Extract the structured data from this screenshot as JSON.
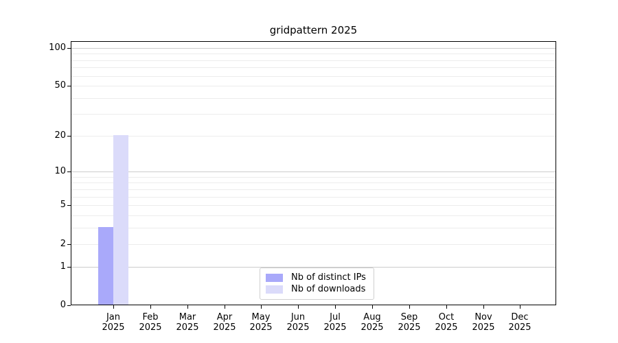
{
  "title": "gridpattern 2025",
  "chart_data": {
    "type": "bar",
    "title": "gridpattern 2025",
    "categories": [
      "Jan",
      "Feb",
      "Mar",
      "Apr",
      "May",
      "Jun",
      "Jul",
      "Aug",
      "Sep",
      "Oct",
      "Nov",
      "Dec"
    ],
    "category_year": "2025",
    "series": [
      {
        "name": "Nb of distinct IPs",
        "color": "#a9a9fa",
        "values": [
          3,
          0,
          0,
          0,
          0,
          0,
          0,
          0,
          0,
          0,
          0,
          0
        ]
      },
      {
        "name": "Nb of downloads",
        "color": "#dbdbfa",
        "values": [
          20,
          0,
          0,
          0,
          0,
          0,
          0,
          0,
          0,
          0,
          0,
          0
        ]
      }
    ],
    "yscale": "log1p",
    "ylim": [
      0,
      113
    ],
    "y_ticks": [
      100,
      50,
      20,
      10,
      5,
      2,
      1,
      0
    ],
    "grid_minor_values": [
      2,
      3,
      4,
      5,
      6,
      7,
      8,
      9,
      20,
      30,
      40,
      50,
      60,
      70,
      80,
      90
    ],
    "grid_major_values": [
      1,
      10,
      100
    ],
    "grid": "horizontal minor+major lines, log spacing",
    "legend_position": "lower center",
    "colors": {
      "grid_minor": "#ececec",
      "grid_major": "#cccccc",
      "axis": "#000000",
      "text": "#000000",
      "background": "#ffffff"
    }
  },
  "legend": {
    "items": [
      {
        "label": "Nb of distinct IPs",
        "color": "#a9a9fa"
      },
      {
        "label": "Nb of downloads",
        "color": "#dbdbfa"
      }
    ]
  }
}
